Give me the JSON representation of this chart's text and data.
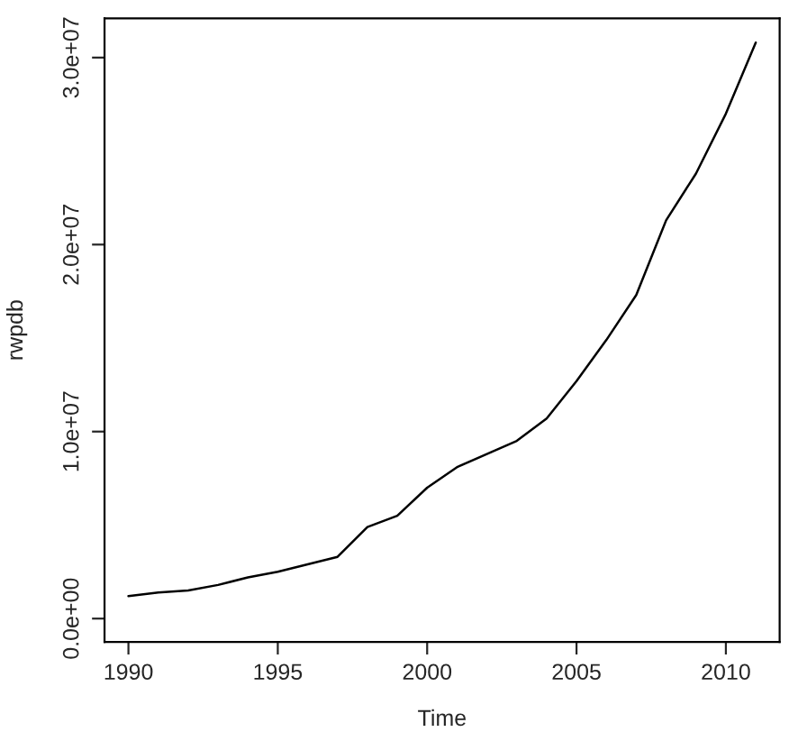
{
  "chart_data": {
    "type": "line",
    "xlabel": "Time",
    "ylabel": "rwpdb",
    "x": [
      1990,
      1991,
      1992,
      1993,
      1994,
      1995,
      1996,
      1997,
      1998,
      1999,
      2000,
      2001,
      2002,
      2003,
      2004,
      2005,
      2006,
      2007,
      2008,
      2009,
      2010,
      2011
    ],
    "series": [
      {
        "color": "#000000",
        "values": [
          1200000,
          1400000,
          1500000,
          1800000,
          2200000,
          2500000,
          2900000,
          3300000,
          4900000,
          5500000,
          7000000,
          8100000,
          8800000,
          9500000,
          10700000,
          12700000,
          14900000,
          17300000,
          21300000,
          23800000,
          27000000,
          30800000
        ]
      }
    ],
    "xlim": [
      1989.2,
      2011.8
    ],
    "xticks": [
      1990,
      1995,
      2000,
      2005,
      2010
    ],
    "ylim": [
      -1250000,
      32100000
    ],
    "yticks": [
      {
        "value": 0,
        "label": "0.0e+00"
      },
      {
        "value": 10000000,
        "label": "1.0e+07"
      },
      {
        "value": 20000000,
        "label": "2.0e+07"
      },
      {
        "value": 30000000,
        "label": "3.0e+07"
      }
    ],
    "grid": false,
    "legend": false,
    "marker": "none",
    "line_style": "solid"
  }
}
